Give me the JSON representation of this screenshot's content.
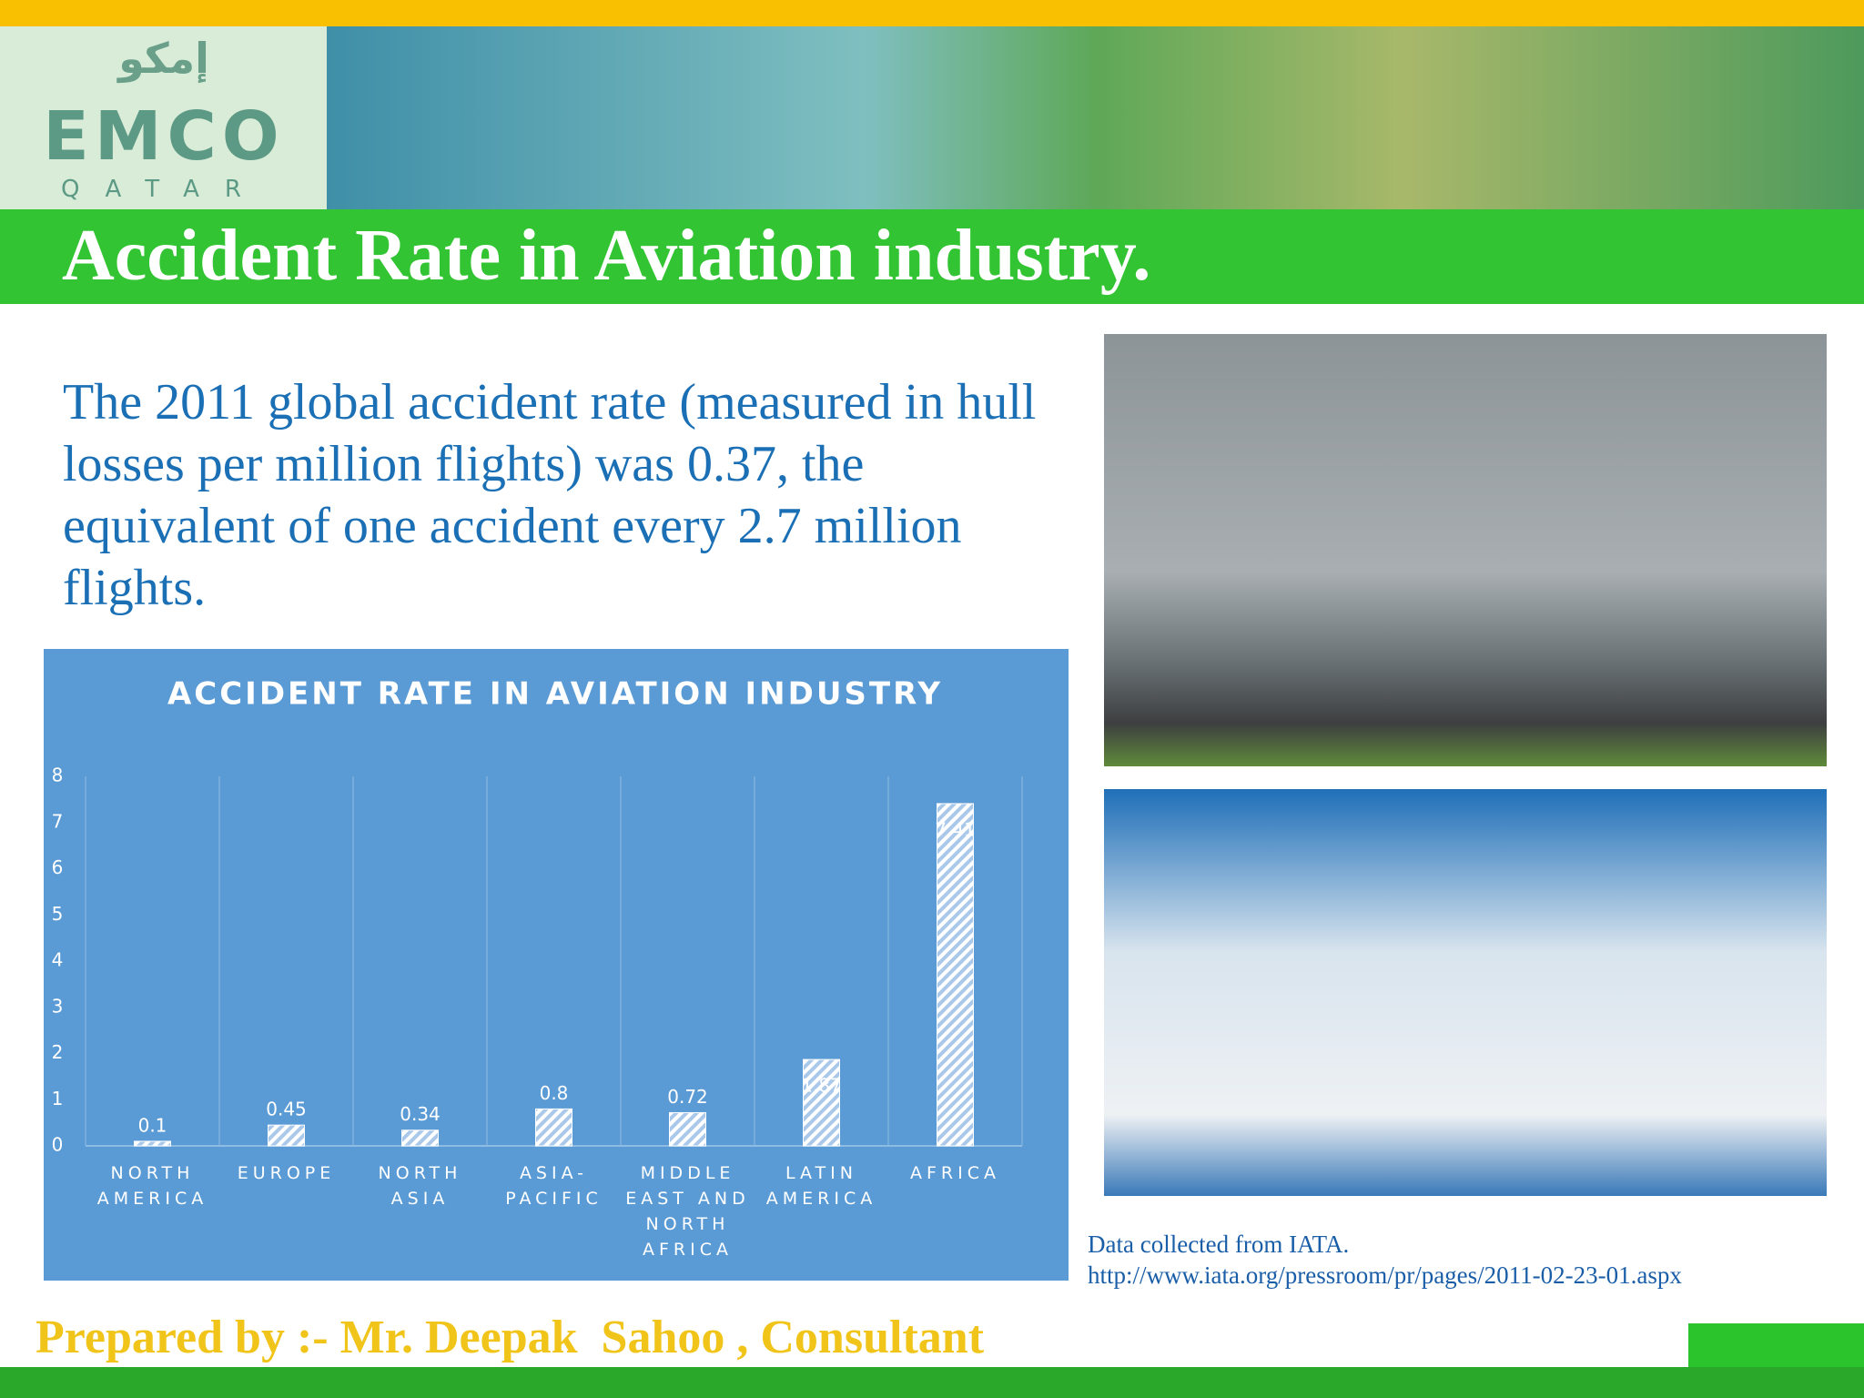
{
  "logo": {
    "arabic": "إمكو",
    "name": "EMCO",
    "sub": "QATAR"
  },
  "header": {
    "title": "Accident Rate in Aviation industry."
  },
  "intro": "The 2011 global accident rate (measured in hull losses per million flights) was 0.37, the equivalent of one accident every 2.7 million flights.",
  "source": {
    "line1": "Data collected from IATA.",
    "line2": "http://www.iata.org/pressroom/pr/pages/2011-02-23-01.aspx"
  },
  "footer": "Prepared by :- Mr. Deepak  Sahoo , Consultant",
  "chart_data": {
    "type": "bar",
    "title": "ACCIDENT RATE IN AVIATION INDUSTRY",
    "categories": [
      "NORTH AMERICA",
      "EUROPE",
      "NORTH ASIA",
      "ASIA-PACIFIC",
      "MIDDLE EAST AND NORTH AFRICA",
      "LATIN AMERICA",
      "AFRICA"
    ],
    "values": [
      0.1,
      0.45,
      0.34,
      0.8,
      0.72,
      1.87,
      7.41
    ],
    "color": "#ffffff",
    "ylim": [
      0,
      8
    ],
    "yticks": [
      0,
      1,
      2,
      3,
      4,
      5,
      6,
      7,
      8
    ],
    "grid": true
  }
}
